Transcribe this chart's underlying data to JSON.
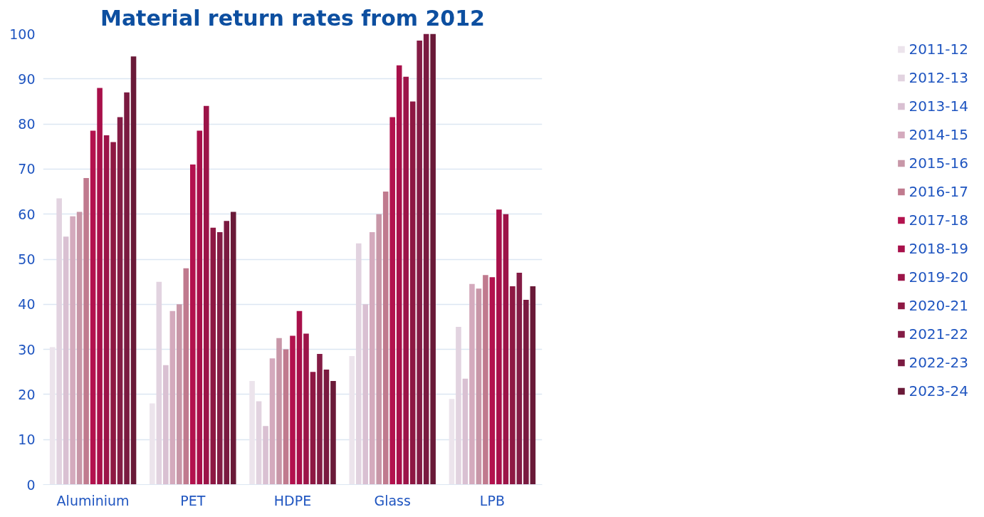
{
  "chart_data": {
    "type": "bar",
    "title": "Material return rates from 2012",
    "categories": [
      "Aluminium",
      "PET",
      "HDPE",
      "Glass",
      "LPB"
    ],
    "ylim": [
      0,
      100
    ],
    "yticks": [
      0,
      10,
      20,
      30,
      40,
      50,
      60,
      70,
      80,
      90,
      100
    ],
    "grid": "y",
    "legend": "right",
    "series": [
      {
        "name": "2011-12",
        "color": "#ece4ec",
        "values": [
          30.5,
          18,
          23,
          28.5,
          19
        ]
      },
      {
        "name": "2012-13",
        "color": "#e2d3e0",
        "values": [
          63.5,
          45,
          18.5,
          53.5,
          35
        ]
      },
      {
        "name": "2013-14",
        "color": "#d9c0d2",
        "values": [
          55,
          26.5,
          13,
          40,
          23.5
        ]
      },
      {
        "name": "2014-15",
        "color": "#d4aabd",
        "values": [
          59.5,
          38.5,
          28,
          56,
          44.5
        ]
      },
      {
        "name": "2015-16",
        "color": "#c897a8",
        "values": [
          60.5,
          40,
          32.5,
          60,
          43.5
        ]
      },
      {
        "name": "2016-17",
        "color": "#c07a8e",
        "values": [
          68,
          48,
          30,
          65,
          46.5
        ]
      },
      {
        "name": "2017-18",
        "color": "#b3124e",
        "values": [
          78.5,
          71,
          33,
          81.5,
          46
        ]
      },
      {
        "name": "2018-19",
        "color": "#a8104a",
        "values": [
          88,
          78.5,
          38.5,
          93,
          61
        ]
      },
      {
        "name": "2019-20",
        "color": "#9c1448",
        "values": [
          77.5,
          84,
          33.5,
          90.5,
          60
        ]
      },
      {
        "name": "2020-21",
        "color": "#8e1843",
        "values": [
          76,
          57,
          25,
          85,
          44
        ]
      },
      {
        "name": "2021-22",
        "color": "#841c45",
        "values": [
          81.5,
          56,
          29,
          98.5,
          47
        ]
      },
      {
        "name": "2022-23",
        "color": "#7a1a40",
        "values": [
          87,
          58.5,
          25.5,
          100,
          41
        ]
      },
      {
        "name": "2023-24",
        "color": "#6a1a38",
        "values": [
          95,
          60.5,
          23,
          100,
          44
        ]
      }
    ]
  }
}
